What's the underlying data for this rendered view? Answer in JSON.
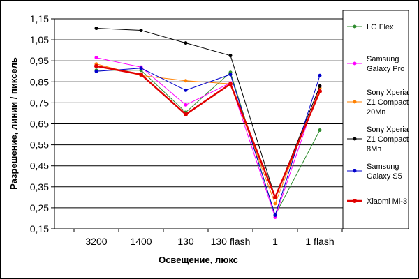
{
  "chart_data": {
    "type": "line",
    "xlabel": "Освещение, люкс",
    "ylabel": "Разрешение, линии / пиксель",
    "categories": [
      "3200",
      "1400",
      "130",
      "130 flash",
      "1",
      "1 flash"
    ],
    "ylim": [
      0.15,
      1.15
    ],
    "yticks": [
      "0,15",
      "0,25",
      "0,35",
      "0,45",
      "0,55",
      "0,65",
      "0,75",
      "0,85",
      "0,95",
      "1,05",
      "1,15"
    ],
    "grid": "horizontal",
    "legend_position": "right",
    "series": [
      {
        "name": "LG Flex",
        "legend_lines": [
          "LG Flex"
        ],
        "color": "#2e8b2e",
        "values": [
          0.905,
          0.905,
          0.705,
          0.895,
          0.215,
          0.62
        ]
      },
      {
        "name": "Samsung Galaxy Pro",
        "legend_lines": [
          "Samsung",
          "Galaxy Pro"
        ],
        "color": "#ff00ff",
        "values": [
          0.965,
          0.92,
          0.74,
          0.845,
          0.205,
          0.83
        ]
      },
      {
        "name": "Sony Xperia Z1 Compact 20Мп",
        "legend_lines": [
          "Sony Xperia",
          "Z1 Compact",
          "20Мп"
        ],
        "color": "#ff8000",
        "values": [
          0.935,
          0.88,
          0.855,
          0.84,
          0.27,
          0.82
        ]
      },
      {
        "name": "Sony Xperia Z1 Compact 8Мп",
        "legend_lines": [
          "Sony Xperia",
          "Z1 Compact",
          "8Мп"
        ],
        "color": "#000000",
        "values": [
          1.105,
          1.095,
          1.035,
          0.975,
          0.3,
          0.83
        ]
      },
      {
        "name": "Samsung Galaxy S5",
        "legend_lines": [
          "Samsung",
          "Galaxy S5"
        ],
        "color": "#0000cc",
        "values": [
          0.9,
          0.915,
          0.81,
          0.885,
          0.215,
          0.88
        ]
      },
      {
        "name": "Xiaomi Mi-3",
        "legend_lines": [
          "Xiaomi Mi-3"
        ],
        "color": "#e00000",
        "values": [
          0.925,
          0.885,
          0.695,
          0.84,
          0.3,
          0.805
        ]
      }
    ]
  }
}
